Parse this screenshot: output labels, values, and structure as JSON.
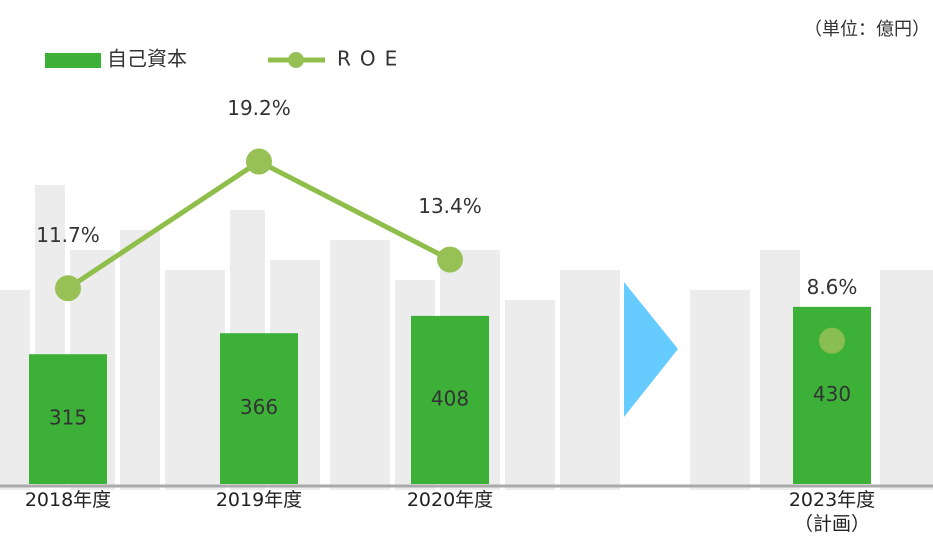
{
  "chart_data": {
    "type": "bar_line",
    "unit_note": "（単位：億円）",
    "categories": [
      "2018年度",
      "2019年度",
      "2020年度",
      null,
      "2023年度\n（計画）"
    ],
    "series": [
      {
        "name": "自己資本",
        "type": "bar",
        "color": "#3db038",
        "values": [
          315,
          366,
          408,
          null,
          430
        ]
      },
      {
        "name": "ROE",
        "type": "line",
        "axis": "y2",
        "color": "#8fbf4a",
        "marker_color": "#97c155",
        "values": [
          11.7,
          19.2,
          13.4,
          null,
          8.6
        ],
        "value_labels": [
          "11.7%",
          "19.2%",
          "13.4%",
          null,
          "8.6%"
        ]
      }
    ],
    "ylim": [
      0,
      1000
    ],
    "y2lim": [
      0,
      24.5
    ],
    "legend": "top-left"
  }
}
